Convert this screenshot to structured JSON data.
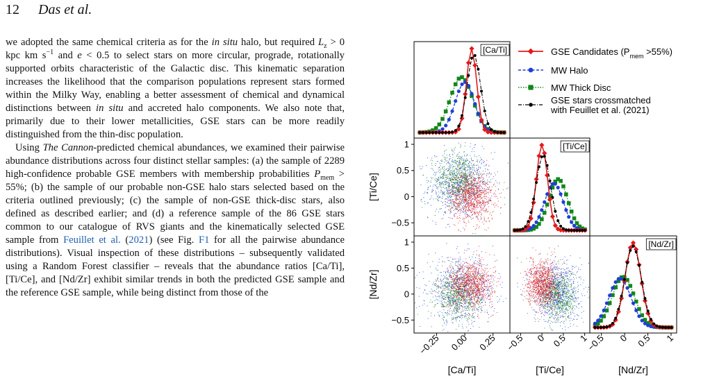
{
  "header": {
    "page_number": "12",
    "authors": "Das et al."
  },
  "body": {
    "p1": [
      {
        "t": "we adopted the same chemical criteria as for the "
      },
      {
        "t": "in situ",
        "i": true
      },
      {
        "t": " halo, but required "
      },
      {
        "t": "L",
        "i": true
      },
      {
        "t": "z",
        "sub": true
      },
      {
        "t": " > 0 kpc km s"
      },
      {
        "t": "−1",
        "sup": true
      },
      {
        "t": " and "
      },
      {
        "t": "e",
        "i": true
      },
      {
        "t": " < 0.5 to select stars on more circular, prograde, rotationally supported orbits characteristic of the Galactic disc. This kinematic separation increases the likelihood that the comparison populations represent stars formed within the Milky Way, enabling a better assessment of chemical and dynamical distinctions between "
      },
      {
        "t": "in situ",
        "i": true
      },
      {
        "t": " and accreted halo components. We also note that, primarily due to their lower metallicities, GSE stars can be more readily distinguished from the thin-disc population."
      }
    ],
    "p2": [
      {
        "t": "Using "
      },
      {
        "t": "The Cannon",
        "i": true
      },
      {
        "t": "-predicted chemical abundances, we examined their pairwise abundance distributions across four distinct stellar samples: (a) the sample of 2289 high-confidence probable GSE members with membership probabilities "
      },
      {
        "t": "P",
        "i": true
      },
      {
        "t": "mem",
        "sub": true
      },
      {
        "t": " > 55%; (b) the sample of our probable non-GSE halo stars selected based on the criteria outlined previously; (c) the sample of non-GSE thick-disc stars, also defined as described earlier; and (d) a reference sample of the 86 GSE stars common to our catalogue of RVS giants and the kinematically selected GSE sample from "
      },
      {
        "t": "Feuillet et al.",
        "c": true
      },
      {
        "t": " ("
      },
      {
        "t": "2021",
        "c": true
      },
      {
        "t": ") (see Fig. "
      },
      {
        "t": "F1",
        "c": true
      },
      {
        "t": " for all the pairwise abundance distributions). Visual inspection of these distributions – subsequently validated using a Random Forest classifier – reveals that the abundance ratios [Ca/Ti], [Ti/Ce], and [Nd/Zr] exhibit similar trends in both the predicted GSE sample and the reference GSE sample, while being distinct from those of the"
      }
    ]
  },
  "legend": {
    "gse_candidates_prefix": "GSE Candidates (P",
    "gse_candidates_sub": "mem",
    "gse_candidates_suffix": " >55%)",
    "mw_halo": "MW Halo",
    "mw_thick_disc": "MW Thick Disc",
    "gse_feuillet_line1": "GSE stars crossmatched",
    "gse_feuillet_line2": "with Feuillet et al. (2021)"
  },
  "colors": {
    "gse": "#e31a1c",
    "halo": "#1f3fd6",
    "thick": "#12871a",
    "feuillet": "#000000"
  },
  "chart_data": {
    "type": "scatter",
    "variables": [
      "[Ca/Ti]",
      "[Ti/Ce]",
      "[Nd/Zr]"
    ],
    "panel_labels": [
      "[Ca/Ti]",
      "[Ti/Ce]",
      "[Nd/Zr]"
    ],
    "axis_ranges": {
      "Ca/Ti": [
        -0.45,
        0.4
      ],
      "Ti/Ce": [
        -0.75,
        1.12
      ],
      "Nd/Zr": [
        -0.75,
        1.12
      ]
    },
    "ticks": {
      "Ca/Ti": {
        "values": [
          -0.25,
          0.0,
          0.25
        ],
        "labels": [
          "−0.25",
          "0.00",
          "0.25"
        ]
      },
      "Ti/Ce": {
        "values": [
          -0.5,
          0.0,
          0.5,
          1.0
        ],
        "labels": [
          "−0.5",
          "0",
          "0.5",
          "1"
        ]
      },
      "Nd/Zr": {
        "values": [
          -0.5,
          0.0,
          0.5,
          1.0
        ],
        "labels": [
          "−0.5",
          "0",
          "0.5",
          "1"
        ]
      }
    },
    "diagonal_histograms": [
      {
        "variable": "[Ca/Ti]",
        "series": [
          {
            "name": "GSE Candidates",
            "center": 0.06,
            "sigma": 0.045,
            "peak": 1.0,
            "skew": 0.0
          },
          {
            "name": "MW Halo",
            "center": 0.0,
            "sigma": 0.085,
            "peak": 0.6,
            "skew": 0.0
          },
          {
            "name": "MW Thick Disc",
            "center": -0.03,
            "sigma": 0.1,
            "peak": 0.66,
            "skew": 0.0
          },
          {
            "name": "GSE stars crossmatched with Feuillet et al. (2021)",
            "center": 0.08,
            "sigma": 0.06,
            "peak": 0.93,
            "skew": 0.0
          }
        ]
      },
      {
        "variable": "[Ti/Ce]",
        "series": [
          {
            "name": "GSE Candidates",
            "center": 0.0,
            "sigma": 0.13,
            "peak": 1.0,
            "skew": 0.0
          },
          {
            "name": "MW Halo",
            "center": 0.28,
            "sigma": 0.22,
            "peak": 0.55,
            "skew": 0.0
          },
          {
            "name": "MW Thick Disc",
            "center": 0.38,
            "sigma": 0.22,
            "peak": 0.6,
            "skew": 0.0
          },
          {
            "name": "GSE stars crossmatched with Feuillet et al. (2021)",
            "center": 0.03,
            "sigma": 0.17,
            "peak": 0.88,
            "skew": 0.0
          }
        ]
      },
      {
        "variable": "[Nd/Zr]",
        "series": [
          {
            "name": "GSE Candidates",
            "center": 0.18,
            "sigma": 0.17,
            "peak": 1.0,
            "skew": 0.0
          },
          {
            "name": "MW Halo",
            "center": -0.1,
            "sigma": 0.24,
            "peak": 0.58,
            "skew": 0.0
          },
          {
            "name": "MW Thick Disc",
            "center": -0.03,
            "sigma": 0.24,
            "peak": 0.6,
            "skew": 0.0
          },
          {
            "name": "GSE stars crossmatched with Feuillet et al. (2021)",
            "center": 0.18,
            "sigma": 0.18,
            "peak": 0.96,
            "skew": 0.0
          }
        ]
      }
    ],
    "scatter_clouds": {
      "Ti/Ce_vs_Ca/Ti": [
        {
          "name": "MW Halo",
          "cx": -0.04,
          "cy": 0.22,
          "sx": 0.14,
          "sy": 0.32,
          "n": 900
        },
        {
          "name": "MW Thick Disc",
          "cx": -0.06,
          "cy": 0.35,
          "sx": 0.1,
          "sy": 0.26,
          "n": 650
        },
        {
          "name": "GSE Candidates",
          "cx": 0.06,
          "cy": 0.0,
          "sx": 0.1,
          "sy": 0.24,
          "n": 900
        }
      ],
      "Nd/Zr_vs_Ca/Ti": [
        {
          "name": "MW Halo",
          "cx": -0.03,
          "cy": 0.08,
          "sx": 0.15,
          "sy": 0.3,
          "n": 900
        },
        {
          "name": "MW Thick Disc",
          "cx": -0.06,
          "cy": -0.03,
          "sx": 0.1,
          "sy": 0.24,
          "n": 600
        },
        {
          "name": "GSE Candidates",
          "cx": 0.05,
          "cy": 0.2,
          "sx": 0.1,
          "sy": 0.22,
          "n": 900
        }
      ],
      "Nd/Zr_vs_Ti/Ce": [
        {
          "name": "MW Halo",
          "cx": 0.32,
          "cy": 0.05,
          "sx": 0.28,
          "sy": 0.3,
          "n": 900
        },
        {
          "name": "MW Thick Disc",
          "cx": 0.38,
          "cy": -0.03,
          "sx": 0.22,
          "sy": 0.24,
          "n": 600
        },
        {
          "name": "GSE Candidates",
          "cx": 0.0,
          "cy": 0.2,
          "sx": 0.18,
          "sy": 0.22,
          "n": 900
        }
      ]
    }
  }
}
